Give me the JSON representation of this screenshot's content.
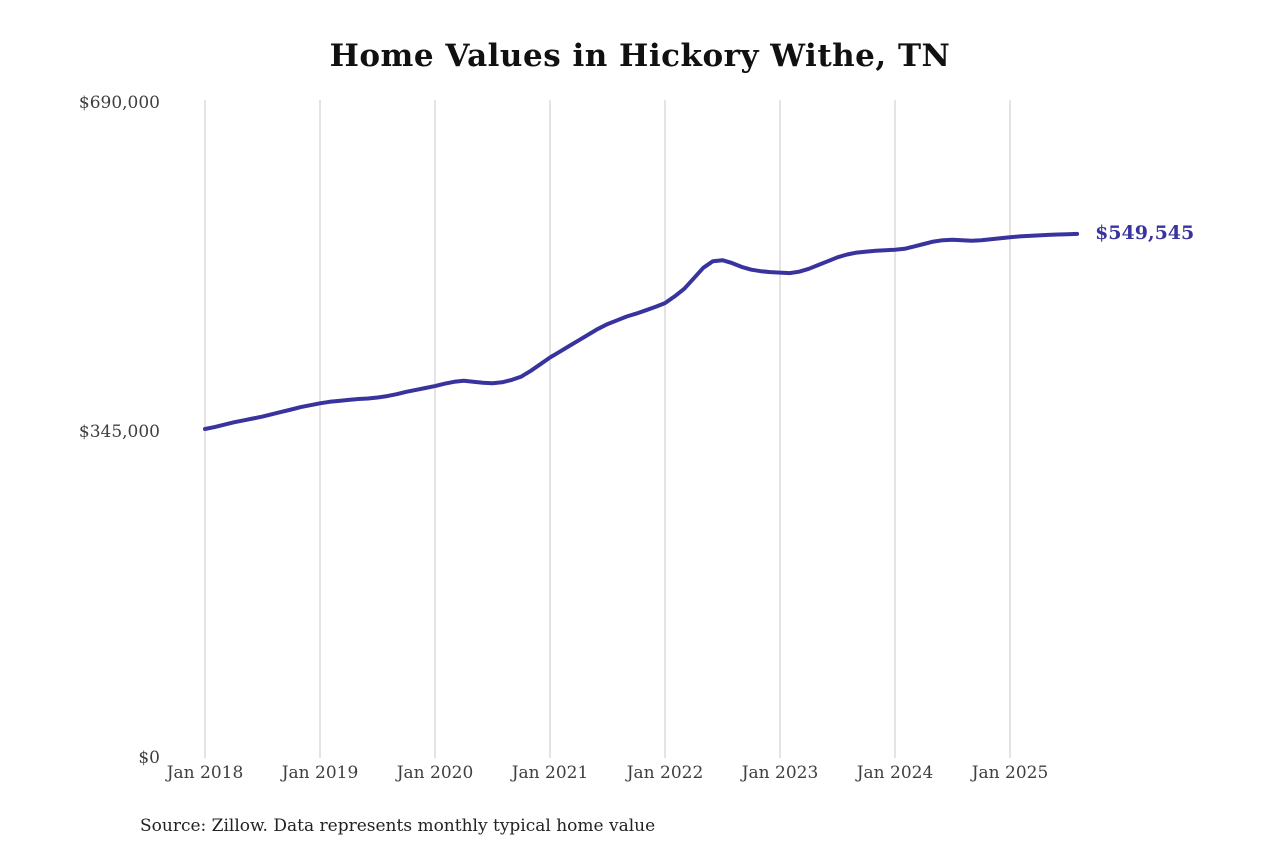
{
  "chart_data": {
    "type": "line",
    "title": "Home Values in Hickory Withe, TN",
    "xlabel": "",
    "ylabel": "",
    "ylim": [
      0,
      690000
    ],
    "y_ticks": [
      0,
      345000,
      690000
    ],
    "y_tick_labels": [
      "$0",
      "$345,000",
      "$690,000"
    ],
    "x_tick_labels": [
      "Jan 2018",
      "Jan 2019",
      "Jan 2020",
      "Jan 2021",
      "Jan 2022",
      "Jan 2023",
      "Jan 2024",
      "Jan 2025"
    ],
    "grid": "vertical-only",
    "legend": "none",
    "line_color": "#39339e",
    "gridline_color": "#c9c9c9",
    "end_label": "$549,545",
    "end_value": 549545,
    "source": "Source: Zillow. Data represents monthly typical home value",
    "months": [
      "Jan 2018",
      "Feb 2018",
      "Mar 2018",
      "Apr 2018",
      "May 2018",
      "Jun 2018",
      "Jul 2018",
      "Aug 2018",
      "Sep 2018",
      "Oct 2018",
      "Nov 2018",
      "Dec 2018",
      "Jan 2019",
      "Feb 2019",
      "Mar 2019",
      "Apr 2019",
      "May 2019",
      "Jun 2019",
      "Jul 2019",
      "Aug 2019",
      "Sep 2019",
      "Oct 2019",
      "Nov 2019",
      "Dec 2019",
      "Jan 2020",
      "Feb 2020",
      "Mar 2020",
      "Apr 2020",
      "May 2020",
      "Jun 2020",
      "Jul 2020",
      "Aug 2020",
      "Sep 2020",
      "Oct 2020",
      "Nov 2020",
      "Dec 2020",
      "Jan 2021",
      "Feb 2021",
      "Mar 2021",
      "Apr 2021",
      "May 2021",
      "Jun 2021",
      "Jul 2021",
      "Aug 2021",
      "Sep 2021",
      "Oct 2021",
      "Nov 2021",
      "Dec 2021",
      "Jan 2022",
      "Feb 2022",
      "Mar 2022",
      "Apr 2022",
      "May 2022",
      "Jun 2022",
      "Jul 2022",
      "Aug 2022",
      "Sep 2022",
      "Oct 2022",
      "Nov 2022",
      "Dec 2022",
      "Jan 2023",
      "Feb 2023",
      "Mar 2023",
      "Apr 2023",
      "May 2023",
      "Jun 2023",
      "Jul 2023",
      "Aug 2023",
      "Sep 2023",
      "Oct 2023",
      "Nov 2023",
      "Dec 2023",
      "Jan 2024",
      "Feb 2024",
      "Mar 2024",
      "Apr 2024",
      "May 2024",
      "Jun 2024",
      "Jul 2024",
      "Aug 2024",
      "Sep 2024",
      "Oct 2024",
      "Nov 2024",
      "Dec 2024",
      "Jan 2025",
      "Feb 2025",
      "Mar 2025",
      "Apr 2025",
      "May 2025",
      "Jun 2025",
      "Jul 2025",
      "Aug 2025"
    ],
    "values": [
      345000,
      347000,
      349500,
      352000,
      354000,
      356000,
      358000,
      360500,
      363000,
      365500,
      368000,
      370000,
      372000,
      373500,
      374500,
      375500,
      376500,
      377000,
      378000,
      379500,
      381500,
      384000,
      386000,
      388000,
      390000,
      392500,
      394500,
      395500,
      394500,
      393500,
      393000,
      394000,
      396500,
      400000,
      406000,
      413000,
      420000,
      426000,
      432000,
      438000,
      444000,
      450000,
      455000,
      459000,
      463000,
      466000,
      469500,
      473000,
      477000,
      484000,
      492000,
      503000,
      514000,
      521000,
      522000,
      519000,
      515000,
      512000,
      510500,
      509500,
      509000,
      508500,
      510000,
      513000,
      517000,
      521000,
      525000,
      528000,
      530000,
      531000,
      532000,
      532500,
      533000,
      534000,
      536500,
      539000,
      541500,
      543000,
      543500,
      543000,
      542500,
      543000,
      544000,
      545000,
      546000,
      547000,
      547500,
      548000,
      548500,
      549000,
      549300,
      549545
    ]
  }
}
